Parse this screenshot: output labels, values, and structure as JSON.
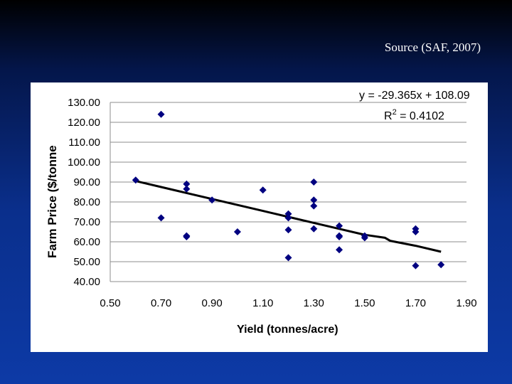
{
  "source_text": "Source (SAF, 2007)",
  "chart_data": {
    "type": "scatter",
    "xlabel": "Yield (tonnes/acre)",
    "ylabel": "Farm Price ($/tonne",
    "xlim": [
      0.5,
      1.9
    ],
    "ylim": [
      40,
      130
    ],
    "x_ticks": [
      "0.50",
      "0.70",
      "0.90",
      "1.10",
      "1.30",
      "1.50",
      "1.70",
      "1.90"
    ],
    "y_ticks": [
      "130.00",
      "120.00",
      "110.00",
      "100.00",
      "90.00",
      "80.00",
      "70.00",
      "60.00",
      "50.00",
      "40.00"
    ],
    "points": [
      [
        0.6,
        91
      ],
      [
        0.7,
        124
      ],
      [
        0.7,
        72
      ],
      [
        0.8,
        89
      ],
      [
        0.8,
        86.5
      ],
      [
        0.8,
        63
      ],
      [
        0.8,
        62.5
      ],
      [
        0.9,
        81
      ],
      [
        1.0,
        65
      ],
      [
        1.1,
        86
      ],
      [
        1.2,
        74
      ],
      [
        1.2,
        72
      ],
      [
        1.2,
        66
      ],
      [
        1.2,
        52
      ],
      [
        1.3,
        90
      ],
      [
        1.3,
        81
      ],
      [
        1.3,
        78
      ],
      [
        1.3,
        66.5
      ],
      [
        1.4,
        68
      ],
      [
        1.4,
        63
      ],
      [
        1.4,
        62.5
      ],
      [
        1.4,
        56
      ],
      [
        1.5,
        63
      ],
      [
        1.5,
        62
      ],
      [
        1.7,
        66.5
      ],
      [
        1.7,
        65
      ],
      [
        1.7,
        48
      ],
      [
        1.8,
        48.5
      ]
    ],
    "trendline": {
      "points": [
        [
          0.6,
          90.5
        ],
        [
          0.7,
          87.5
        ],
        [
          0.8,
          84.5
        ],
        [
          0.9,
          81.5
        ],
        [
          1.0,
          78.5
        ],
        [
          1.1,
          75.5
        ],
        [
          1.2,
          72.5
        ],
        [
          1.3,
          69.5
        ],
        [
          1.4,
          66.5
        ],
        [
          1.5,
          63.5
        ],
        [
          1.58,
          62
        ],
        [
          1.6,
          60.5
        ],
        [
          1.7,
          58
        ],
        [
          1.8,
          55
        ]
      ],
      "equation": "y = -29.365x + 108.09",
      "r2_prefix": "R",
      "r2_sup": "2",
      "r2_value": " = 0.4102"
    },
    "grid": true,
    "marker_color": "#000080",
    "line_color": "#000000"
  }
}
